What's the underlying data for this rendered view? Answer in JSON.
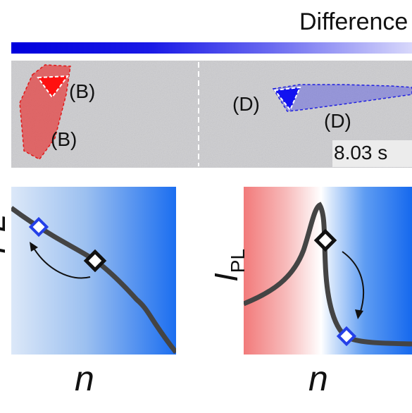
{
  "header": {
    "title": "Difference"
  },
  "colorbar": {
    "start_color": "#0000dd",
    "end_color": "#d8d8fb"
  },
  "micrograph": {
    "left_labels": [
      "(B)",
      "(B)"
    ],
    "right_labels": [
      "(D)",
      "(D)"
    ],
    "timestamp": "8.03 s"
  },
  "left_plot": {
    "y_label": "PL",
    "x_label": "n"
  },
  "right_plot": {
    "y_label_main": "I",
    "y_label_sub": "PL",
    "x_label": "n"
  },
  "colors": {
    "red": "#f02020",
    "blue": "#1a1aee",
    "curve": "#444444"
  }
}
